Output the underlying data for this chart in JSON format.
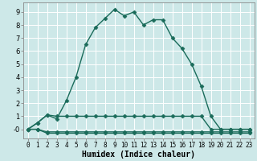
{
  "xlabel": "Humidex (Indice chaleur)",
  "x_ticks": [
    0,
    1,
    2,
    3,
    4,
    5,
    6,
    7,
    8,
    9,
    10,
    11,
    12,
    13,
    14,
    15,
    16,
    17,
    18,
    19,
    20,
    21,
    22,
    23
  ],
  "ylim": [
    -0.7,
    9.7
  ],
  "xlim": [
    -0.5,
    23.5
  ],
  "bg_color": "#cde8e8",
  "grid_color": "#b0d8d8",
  "line_color": "#1a6b5a",
  "series1_x": [
    0,
    1,
    2,
    3,
    4,
    5,
    6,
    7,
    8,
    9,
    10,
    11,
    12,
    13,
    14,
    15,
    16,
    17,
    18,
    19,
    20,
    21,
    22,
    23
  ],
  "series1_y": [
    0.0,
    0.5,
    1.1,
    0.8,
    2.2,
    4.0,
    6.5,
    7.8,
    8.5,
    9.2,
    8.7,
    9.0,
    8.0,
    8.4,
    8.4,
    7.0,
    6.2,
    5.0,
    3.3,
    1.0,
    0.0,
    0.0,
    0.0,
    0.0
  ],
  "series2_x": [
    0,
    1,
    2,
    3,
    4,
    5,
    6,
    7,
    8,
    9,
    10,
    11,
    12,
    13,
    14,
    15,
    16,
    17,
    18,
    19,
    20,
    21,
    22,
    23
  ],
  "series2_y": [
    0.0,
    0.5,
    1.1,
    1.0,
    1.0,
    1.0,
    1.0,
    1.0,
    1.0,
    1.0,
    1.0,
    1.0,
    1.0,
    1.0,
    1.0,
    1.0,
    1.0,
    1.0,
    1.0,
    0.0,
    0.0,
    0.0,
    0.0,
    0.0
  ],
  "series3_x": [
    0,
    1,
    2,
    3,
    4,
    5,
    6,
    7,
    8,
    9,
    10,
    11,
    12,
    13,
    14,
    15,
    16,
    17,
    18,
    19,
    20,
    21,
    22,
    23
  ],
  "series3_y": [
    0.0,
    0.0,
    -0.2,
    -0.2,
    -0.2,
    -0.2,
    -0.2,
    -0.2,
    -0.2,
    -0.2,
    -0.2,
    -0.2,
    -0.2,
    -0.2,
    -0.2,
    -0.2,
    -0.2,
    -0.2,
    -0.2,
    -0.2,
    -0.2,
    -0.2,
    -0.2,
    -0.2
  ],
  "series4_x": [
    0,
    1,
    2,
    3,
    4,
    5,
    6,
    7,
    8,
    9,
    10,
    11,
    12,
    13,
    14,
    15,
    16,
    17,
    18,
    19,
    20,
    21,
    22,
    23
  ],
  "series4_y": [
    0.0,
    0.0,
    -0.3,
    -0.3,
    -0.3,
    -0.3,
    -0.3,
    -0.3,
    -0.3,
    -0.3,
    -0.3,
    -0.3,
    -0.3,
    -0.3,
    -0.3,
    -0.3,
    -0.3,
    -0.3,
    -0.3,
    -0.3,
    -0.3,
    -0.3,
    -0.3,
    -0.3
  ],
  "yticks": [
    0,
    1,
    2,
    3,
    4,
    5,
    6,
    7,
    8,
    9
  ],
  "ytick_labels": [
    "-0",
    "1",
    "2",
    "3",
    "4",
    "5",
    "6",
    "7",
    "8",
    "9"
  ],
  "markersize": 2.5,
  "linewidth": 1.0,
  "tick_fontsize": 5.5,
  "xlabel_fontsize": 7.0
}
